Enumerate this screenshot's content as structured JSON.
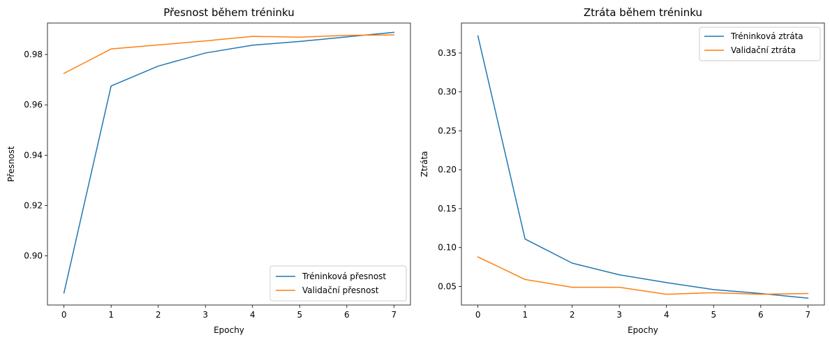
{
  "chart_data": [
    {
      "type": "line",
      "title": "Přesnost během tréninku",
      "xlabel": "Epochy",
      "ylabel": "Přesnost",
      "x": [
        0,
        1,
        2,
        3,
        4,
        5,
        6,
        7
      ],
      "xlim": [
        -0.35,
        7.35
      ],
      "ylim": [
        0.8805,
        0.9925
      ],
      "xticks": [
        "0",
        "1",
        "2",
        "3",
        "4",
        "5",
        "6",
        "7"
      ],
      "yticks": [
        "0.90",
        "0.92",
        "0.94",
        "0.96",
        "0.98"
      ],
      "ytick_values": [
        0.9,
        0.92,
        0.94,
        0.96,
        0.98
      ],
      "grid": false,
      "legend_position": "bottom-right",
      "series": [
        {
          "name": "Tréninková přesnost",
          "color": "#1f77b4",
          "values": [
            0.8853,
            0.9675,
            0.9754,
            0.9806,
            0.9837,
            0.9852,
            0.987,
            0.9888
          ]
        },
        {
          "name": "Validační přesnost",
          "color": "#ff7f0e",
          "values": [
            0.9725,
            0.9822,
            0.9838,
            0.9854,
            0.9872,
            0.9869,
            0.9876,
            0.9878
          ]
        }
      ]
    },
    {
      "type": "line",
      "title": "Ztráta během tréninku",
      "xlabel": "Epochy",
      "ylabel": "Ztráta",
      "x": [
        0,
        1,
        2,
        3,
        4,
        5,
        6,
        7
      ],
      "xlim": [
        -0.35,
        7.35
      ],
      "ylim": [
        0.0262,
        0.3885
      ],
      "xticks": [
        "0",
        "1",
        "2",
        "3",
        "4",
        "5",
        "6",
        "7"
      ],
      "yticks": [
        "0.05",
        "0.10",
        "0.15",
        "0.20",
        "0.25",
        "0.30",
        "0.35"
      ],
      "ytick_values": [
        0.05,
        0.1,
        0.15,
        0.2,
        0.25,
        0.3,
        0.35
      ],
      "grid": false,
      "legend_position": "top-right",
      "series": [
        {
          "name": "Tréninková ztráta",
          "color": "#1f77b4",
          "values": [
            0.372,
            0.111,
            0.08,
            0.065,
            0.055,
            0.046,
            0.041,
            0.035
          ]
        },
        {
          "name": "Validační ztráta",
          "color": "#ff7f0e",
          "values": [
            0.088,
            0.059,
            0.049,
            0.049,
            0.04,
            0.042,
            0.04,
            0.041
          ]
        }
      ]
    }
  ]
}
